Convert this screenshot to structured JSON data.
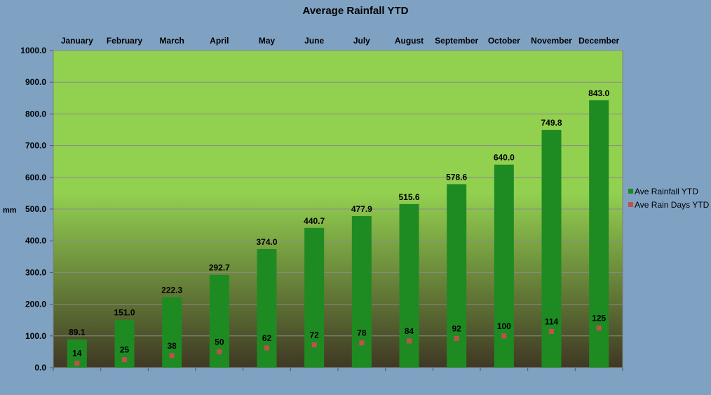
{
  "chart_data": {
    "type": "bar",
    "title": "Average Rainfall YTD",
    "ylabel": "mm",
    "xlabel": "",
    "ylim": [
      0,
      1000
    ],
    "yticks": [
      "0.0",
      "100.0",
      "200.0",
      "300.0",
      "400.0",
      "500.0",
      "600.0",
      "700.0",
      "800.0",
      "900.0",
      "1000.0"
    ],
    "ytick_values": [
      0,
      100,
      200,
      300,
      400,
      500,
      600,
      700,
      800,
      900,
      1000
    ],
    "categories": [
      "January",
      "February",
      "March",
      "April",
      "May",
      "June",
      "July",
      "August",
      "September",
      "October",
      "November",
      "December"
    ],
    "grid": true,
    "legend_position": "right",
    "colors": {
      "rainfall": "#1e8b22",
      "rain_days": "#c0504d",
      "plot_top": "#92d050",
      "plot_bottom": "#3f3824",
      "background": "#7fa2c3"
    },
    "series": [
      {
        "name": "Ave Rainfall YTD",
        "kind": "bar",
        "values": [
          89.1,
          151.0,
          222.3,
          292.7,
          374.0,
          440.7,
          477.9,
          515.6,
          578.6,
          640.0,
          749.8,
          843.0
        ],
        "labels": [
          "89.1",
          "151.0",
          "222.3",
          "292.7",
          "374.0",
          "440.7",
          "477.9",
          "515.6",
          "578.6",
          "640.0",
          "749.8",
          "843.0"
        ]
      },
      {
        "name": "Ave Rain Days YTD",
        "kind": "marker",
        "values": [
          14,
          25,
          38,
          50,
          62,
          72,
          78,
          84,
          92,
          100,
          114,
          125
        ],
        "labels": [
          "14",
          "25",
          "38",
          "50",
          "62",
          "72",
          "78",
          "84",
          "92",
          "100",
          "114",
          "125"
        ]
      }
    ]
  }
}
